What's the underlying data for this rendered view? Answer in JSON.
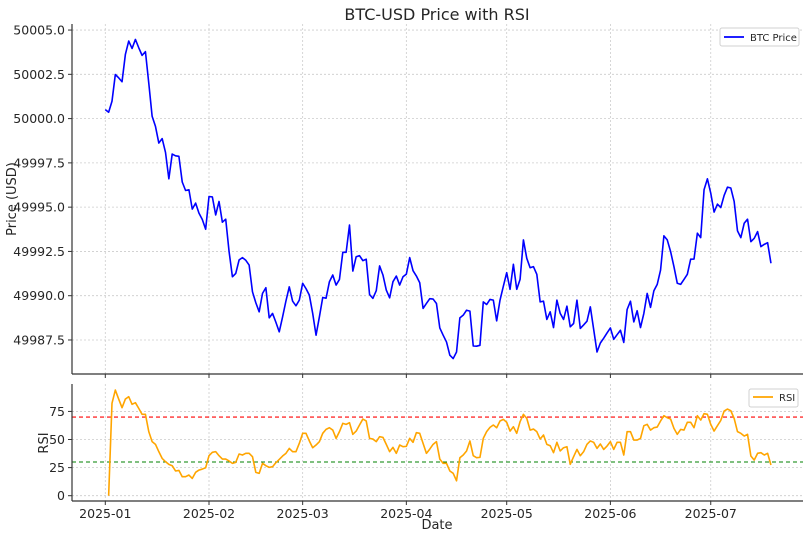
{
  "chart_data": [
    {
      "type": "line",
      "title": "BTC-USD Price with RSI",
      "xlabel": "",
      "ylabel": "Price (USD)",
      "ylim": [
        49985.6,
        50005.4
      ],
      "yticks": [
        "49987.5",
        "49990.0",
        "49992.5",
        "49995.0",
        "49997.5",
        "50000.0",
        "50002.5",
        "50005.0"
      ],
      "grid": true,
      "legend": "top-right",
      "series": [
        {
          "name": "BTC Price",
          "color": "#0000ff",
          "values": [
            50000.51,
            50000.36,
            50000.98,
            50002.49,
            50002.3,
            50002.08,
            50003.62,
            50004.38,
            50003.96,
            50004.47,
            50004.0,
            50003.57,
            50003.78,
            50002.0,
            50000.13,
            49999.56,
            49998.62,
            49998.87,
            49998.09,
            49996.6,
            49998.0,
            49997.9,
            49997.87,
            49996.42,
            49995.94,
            49995.98,
            49994.89,
            49995.23,
            49994.66,
            49994.3,
            49993.75,
            49995.6,
            49995.58,
            49994.56,
            49995.32,
            49994.15,
            49994.32,
            49992.5,
            49991.07,
            49991.26,
            49992.02,
            49992.15,
            49992.0,
            49991.73,
            49990.22,
            49989.6,
            49989.09,
            49990.13,
            49990.45,
            49988.75,
            49989.0,
            49988.5,
            49987.96,
            49988.8,
            49989.7,
            49990.5,
            49989.69,
            49989.43,
            49989.75,
            49990.7,
            49990.4,
            49990.03,
            49989.0,
            49987.77,
            49988.8,
            49989.9,
            49989.86,
            49990.79,
            49991.17,
            49990.6,
            49990.92,
            49992.45,
            49992.45,
            49993.99,
            49991.39,
            49992.2,
            49992.26,
            49991.98,
            49992.06,
            49990.07,
            49989.85,
            49990.28,
            49991.68,
            49991.17,
            49990.32,
            49989.88,
            49990.79,
            49991.11,
            49990.6,
            49991.07,
            49991.22,
            49992.15,
            49991.41,
            49991.11,
            49990.73,
            49989.28,
            49989.56,
            49989.83,
            49989.81,
            49989.56,
            49988.18,
            49987.77,
            49987.39,
            49986.64,
            49986.45,
            49986.82,
            49988.75,
            49988.9,
            49989.18,
            49989.13,
            49987.16,
            49987.15,
            49987.2,
            49989.65,
            49989.5,
            49989.79,
            49989.75,
            49988.58,
            49989.75,
            49990.54,
            49991.3,
            49990.36,
            49991.77,
            49990.36,
            49990.92,
            49993.15,
            49992.11,
            49991.58,
            49991.64,
            49991.21,
            49989.65,
            49989.69,
            49988.66,
            49989.09,
            49988.2,
            49989.75,
            49989.0,
            49988.66,
            49989.41,
            49988.24,
            49988.43,
            49989.75,
            49988.15,
            49988.35,
            49988.56,
            49989.37,
            49988.1,
            49986.82,
            49987.33,
            49987.6,
            49987.9,
            49988.18,
            49987.54,
            49987.8,
            49988.05,
            49987.36,
            49989.22,
            49989.69,
            49988.52,
            49989.15,
            49988.2,
            49989.0,
            49990.13,
            49989.34,
            49990.28,
            49990.64,
            49991.45,
            49993.38,
            49993.15,
            49992.49,
            49991.64,
            49990.7,
            49990.64,
            49990.92,
            49991.21,
            49992.06,
            49992.07,
            49993.53,
            49993.28,
            49995.98,
            49996.6,
            49995.79,
            49994.72,
            49995.17,
            49994.98,
            49995.66,
            49996.13,
            49996.08,
            49995.32,
            49993.66,
            49993.28,
            49994.09,
            49994.32,
            49993.05,
            49993.24,
            49993.62,
            49992.77,
            49992.9,
            49992.99,
            49991.83
          ]
        }
      ]
    },
    {
      "type": "line",
      "title": "",
      "xlabel": "Date",
      "ylabel": "RSI",
      "ylim": [
        -4,
        100
      ],
      "yticks": [
        "0",
        "25",
        "50",
        "75"
      ],
      "grid": true,
      "legend": "top-right",
      "reference_lines": [
        {
          "value": 70,
          "color": "#ff0000",
          "style": "dashed"
        },
        {
          "value": 30,
          "color": "#008000",
          "style": "dashed"
        }
      ],
      "series": [
        {
          "name": "RSI",
          "color": "#ffa500",
          "values": [
            null,
            0,
            82.2,
            94,
            86,
            78.3,
            86,
            88.1,
            81.3,
            82.8,
            77.7,
            72.4,
            72.4,
            57,
            48.1,
            45.7,
            39.2,
            33.2,
            30.3,
            27.9,
            26.7,
            22,
            22.5,
            16.9,
            16.9,
            18.4,
            15.4,
            20.8,
            22.8,
            23.7,
            24.9,
            35.6,
            38.6,
            39.2,
            35.6,
            32.6,
            32.6,
            30.9,
            28.8,
            29.7,
            37.1,
            36.2,
            37.7,
            37.7,
            34.7,
            20.8,
            19.9,
            28.8,
            26.7,
            25.2,
            25.8,
            29.4,
            32.3,
            35.3,
            37.7,
            42.1,
            39.2,
            39.2,
            46.6,
            55.5,
            55.5,
            48.7,
            42.7,
            45.1,
            48.1,
            55.5,
            59,
            60.5,
            58.4,
            51,
            57,
            64.4,
            63.5,
            65,
            54.6,
            57.5,
            62.9,
            68.2,
            66.5,
            51,
            50.4,
            48.1,
            52.5,
            51.9,
            45.7,
            39.2,
            43,
            37.7,
            45.1,
            43.6,
            43.9,
            51,
            47.5,
            56.1,
            55.5,
            46.6,
            37.7,
            41.5,
            45.7,
            48.1,
            32.6,
            28.8,
            28.8,
            22,
            19.9,
            13.3,
            33.8,
            36.2,
            39.8,
            48.7,
            35.6,
            33.8,
            34.1,
            51,
            57,
            60.8,
            62.9,
            60.5,
            66.5,
            67.9,
            65.3,
            57.5,
            61.4,
            55.5,
            65.9,
            72.4,
            68.8,
            58.4,
            59.3,
            57,
            50.4,
            54,
            45.7,
            44.5,
            38.3,
            47.5,
            39.8,
            42.7,
            43.6,
            27.9,
            34.7,
            41.2,
            35.6,
            39.2,
            45.7,
            48.7,
            47.5,
            42.1,
            46,
            41.2,
            44.2,
            48.1,
            41.2,
            47.5,
            47.5,
            36.2,
            57,
            57,
            49.5,
            49.5,
            51,
            62.3,
            63.5,
            58.4,
            60.5,
            61.1,
            66.5,
            71.2,
            69.4,
            68.2,
            59.9,
            54.6,
            59,
            58.4,
            65.3,
            65.3,
            60.5,
            71.2,
            67.3,
            73,
            72.4,
            63.5,
            57.5,
            62.3,
            67,
            75.3,
            77.1,
            75.6,
            68.8,
            57,
            55.5,
            53.1,
            54.6,
            35.3,
            31.7,
            37.7,
            38.3,
            36.2,
            37.7,
            27.3
          ]
        }
      ]
    }
  ],
  "x": {
    "xticks": [
      "2025-01",
      "2025-02",
      "2025-03",
      "2025-04",
      "2025-05",
      "2025-06",
      "2025-07"
    ],
    "dates": [
      "2025-01-01",
      "2025-01-02",
      "2025-01-03",
      "2025-01-04",
      "2025-01-05",
      "2025-01-06",
      "2025-01-07",
      "2025-01-08",
      "2025-01-09",
      "2025-01-10",
      "2025-01-11",
      "2025-01-12",
      "2025-01-13",
      "2025-01-14",
      "2025-01-15",
      "2025-01-16",
      "2025-01-17",
      "2025-01-18",
      "2025-01-19",
      "2025-01-20",
      "2025-01-21",
      "2025-01-22",
      "2025-01-23",
      "2025-01-24",
      "2025-01-25",
      "2025-01-26",
      "2025-01-27",
      "2025-01-28",
      "2025-01-29",
      "2025-01-30",
      "2025-01-31",
      "2025-02-01",
      "2025-02-02",
      "2025-02-03",
      "2025-02-04",
      "2025-02-05",
      "2025-02-06",
      "2025-02-07",
      "2025-02-08",
      "2025-02-09",
      "2025-02-10",
      "2025-02-11",
      "2025-02-12",
      "2025-02-13",
      "2025-02-14",
      "2025-02-15",
      "2025-02-16",
      "2025-02-17",
      "2025-02-18",
      "2025-02-19",
      "2025-02-20",
      "2025-02-21",
      "2025-02-22",
      "2025-02-23",
      "2025-02-24",
      "2025-02-25",
      "2025-02-26",
      "2025-02-27",
      "2025-02-28",
      "2025-03-01",
      "2025-03-02",
      "2025-03-03",
      "2025-03-04",
      "2025-03-05",
      "2025-03-06",
      "2025-03-07",
      "2025-03-08",
      "2025-03-09",
      "2025-03-10",
      "2025-03-11",
      "2025-03-12",
      "2025-03-13",
      "2025-03-14",
      "2025-03-15",
      "2025-03-16",
      "2025-03-17",
      "2025-03-18",
      "2025-03-19",
      "2025-03-20",
      "2025-03-21",
      "2025-03-22",
      "2025-03-23",
      "2025-03-24",
      "2025-03-25",
      "2025-03-26",
      "2025-03-27",
      "2025-03-28",
      "2025-03-29",
      "2025-03-30",
      "2025-03-31",
      "2025-04-01",
      "2025-04-02",
      "2025-04-03",
      "2025-04-04",
      "2025-04-05",
      "2025-04-06",
      "2025-04-07",
      "2025-04-08",
      "2025-04-09",
      "2025-04-10",
      "2025-04-11",
      "2025-04-12",
      "2025-04-13",
      "2025-04-14",
      "2025-04-15",
      "2025-04-16",
      "2025-04-17",
      "2025-04-18",
      "2025-04-19",
      "2025-04-20",
      "2025-04-21",
      "2025-04-22",
      "2025-04-23",
      "2025-04-24",
      "2025-04-25",
      "2025-04-26",
      "2025-04-27",
      "2025-04-28",
      "2025-04-29",
      "2025-04-30",
      "2025-05-01",
      "2025-05-02",
      "2025-05-03",
      "2025-05-04",
      "2025-05-05",
      "2025-05-06",
      "2025-05-07",
      "2025-05-08",
      "2025-05-09",
      "2025-05-10",
      "2025-05-11",
      "2025-05-12",
      "2025-05-13",
      "2025-05-14",
      "2025-05-15",
      "2025-05-16",
      "2025-05-17",
      "2025-05-18",
      "2025-05-19",
      "2025-05-20",
      "2025-05-21",
      "2025-05-22",
      "2025-05-23",
      "2025-05-24",
      "2025-05-25",
      "2025-05-26",
      "2025-05-27",
      "2025-05-28",
      "2025-05-29",
      "2025-05-30",
      "2025-05-31",
      "2025-06-01",
      "2025-06-02",
      "2025-06-03",
      "2025-06-04",
      "2025-06-05",
      "2025-06-06",
      "2025-06-07",
      "2025-06-08",
      "2025-06-09",
      "2025-06-10",
      "2025-06-11",
      "2025-06-12",
      "2025-06-13",
      "2025-06-14",
      "2025-06-15",
      "2025-06-16",
      "2025-06-17",
      "2025-06-18",
      "2025-06-19",
      "2025-06-20",
      "2025-06-21",
      "2025-06-22",
      "2025-06-23",
      "2025-06-24",
      "2025-06-25",
      "2025-06-26",
      "2025-06-27",
      "2025-06-28",
      "2025-06-29",
      "2025-06-30",
      "2025-07-01",
      "2025-07-02",
      "2025-07-03",
      "2025-07-04",
      "2025-07-05",
      "2025-07-06",
      "2025-07-07",
      "2025-07-08",
      "2025-07-09",
      "2025-07-10",
      "2025-07-11",
      "2025-07-12",
      "2025-07-13",
      "2025-07-14",
      "2025-07-15",
      "2025-07-16",
      "2025-07-17",
      "2025-07-18",
      "2025-07-19"
    ]
  }
}
